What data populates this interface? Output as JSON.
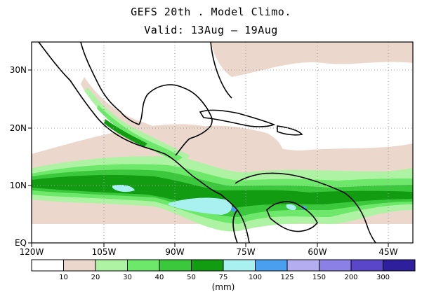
{
  "title": {
    "line1": "GEFS 20th . Model Climo.",
    "line2": "Valid: 13Aug — 19Aug"
  },
  "map": {
    "lon_labels": [
      "120W",
      "105W",
      "90W",
      "75W",
      "60W",
      "45W"
    ],
    "lat_labels": [
      "30N",
      "20N",
      "10N",
      "EQ"
    ],
    "gridlines": "dotted"
  },
  "legend": {
    "unit": "(mm)",
    "bins": [
      {
        "label": "",
        "color": "#ffffff"
      },
      {
        "label": "10",
        "color": "#ecd7cc"
      },
      {
        "label": "20",
        "color": "#aef3a3"
      },
      {
        "label": "30",
        "color": "#6ee86a"
      },
      {
        "label": "40",
        "color": "#3cc83c"
      },
      {
        "label": "50",
        "color": "#129c12"
      },
      {
        "label": "75",
        "color": "#a9f0f0"
      },
      {
        "label": "100",
        "color": "#4aa0ee"
      },
      {
        "label": "125",
        "color": "#b4aef0"
      },
      {
        "label": "150",
        "color": "#8a80e6"
      },
      {
        "label": "200",
        "color": "#5a46c8"
      },
      {
        "label": "300",
        "color": "#2e1f9c"
      }
    ]
  }
}
